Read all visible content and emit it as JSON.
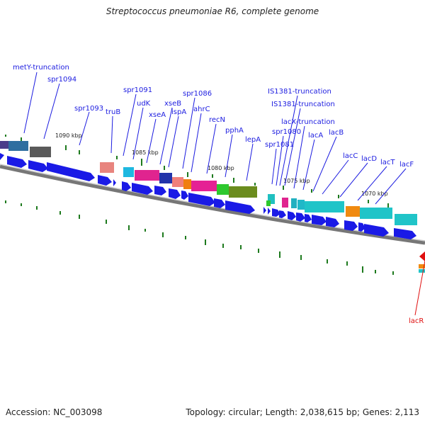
{
  "header": {
    "title": "Streptococcus pneumoniae R6, complete genome"
  },
  "footer": {
    "accession": "Accession: NC_003098",
    "stats": "Topology: circular; Length: 2,038,615 bp; Genes: 2,113"
  },
  "scale": {
    "ticks": [
      {
        "label": "1090 kbp"
      },
      {
        "label": "1085 kbp"
      },
      {
        "label": "1080 kbp"
      },
      {
        "label": "1075 kbp"
      },
      {
        "label": "1070 kbp"
      }
    ]
  },
  "genes": [
    {
      "name": "metY-truncation"
    },
    {
      "name": "spr1094"
    },
    {
      "name": "spr1093"
    },
    {
      "name": "truB"
    },
    {
      "name": "spr1091"
    },
    {
      "name": "udK"
    },
    {
      "name": "xseA"
    },
    {
      "name": "xseB"
    },
    {
      "name": "ispA"
    },
    {
      "name": "spr1086"
    },
    {
      "name": "ahrC"
    },
    {
      "name": "recN"
    },
    {
      "name": "pphA"
    },
    {
      "name": "lepA"
    },
    {
      "name": "spr1081"
    },
    {
      "name": "spr1080"
    },
    {
      "name": "IS1381-truncation"
    },
    {
      "name": "IS1381-truncation"
    },
    {
      "name": "lacX-truncation"
    },
    {
      "name": "lacA"
    },
    {
      "name": "lacB"
    },
    {
      "name": "lacC"
    },
    {
      "name": "lacD"
    },
    {
      "name": "lacT"
    },
    {
      "name": "lacF"
    },
    {
      "name": "lacR"
    }
  ],
  "colors": {
    "gene_label": "#1c1ce0",
    "highlight_label": "#e01010",
    "cds_arrow": "#1a1ae6",
    "backbone": "#888888",
    "gc_tick": "#1e7a1e"
  }
}
